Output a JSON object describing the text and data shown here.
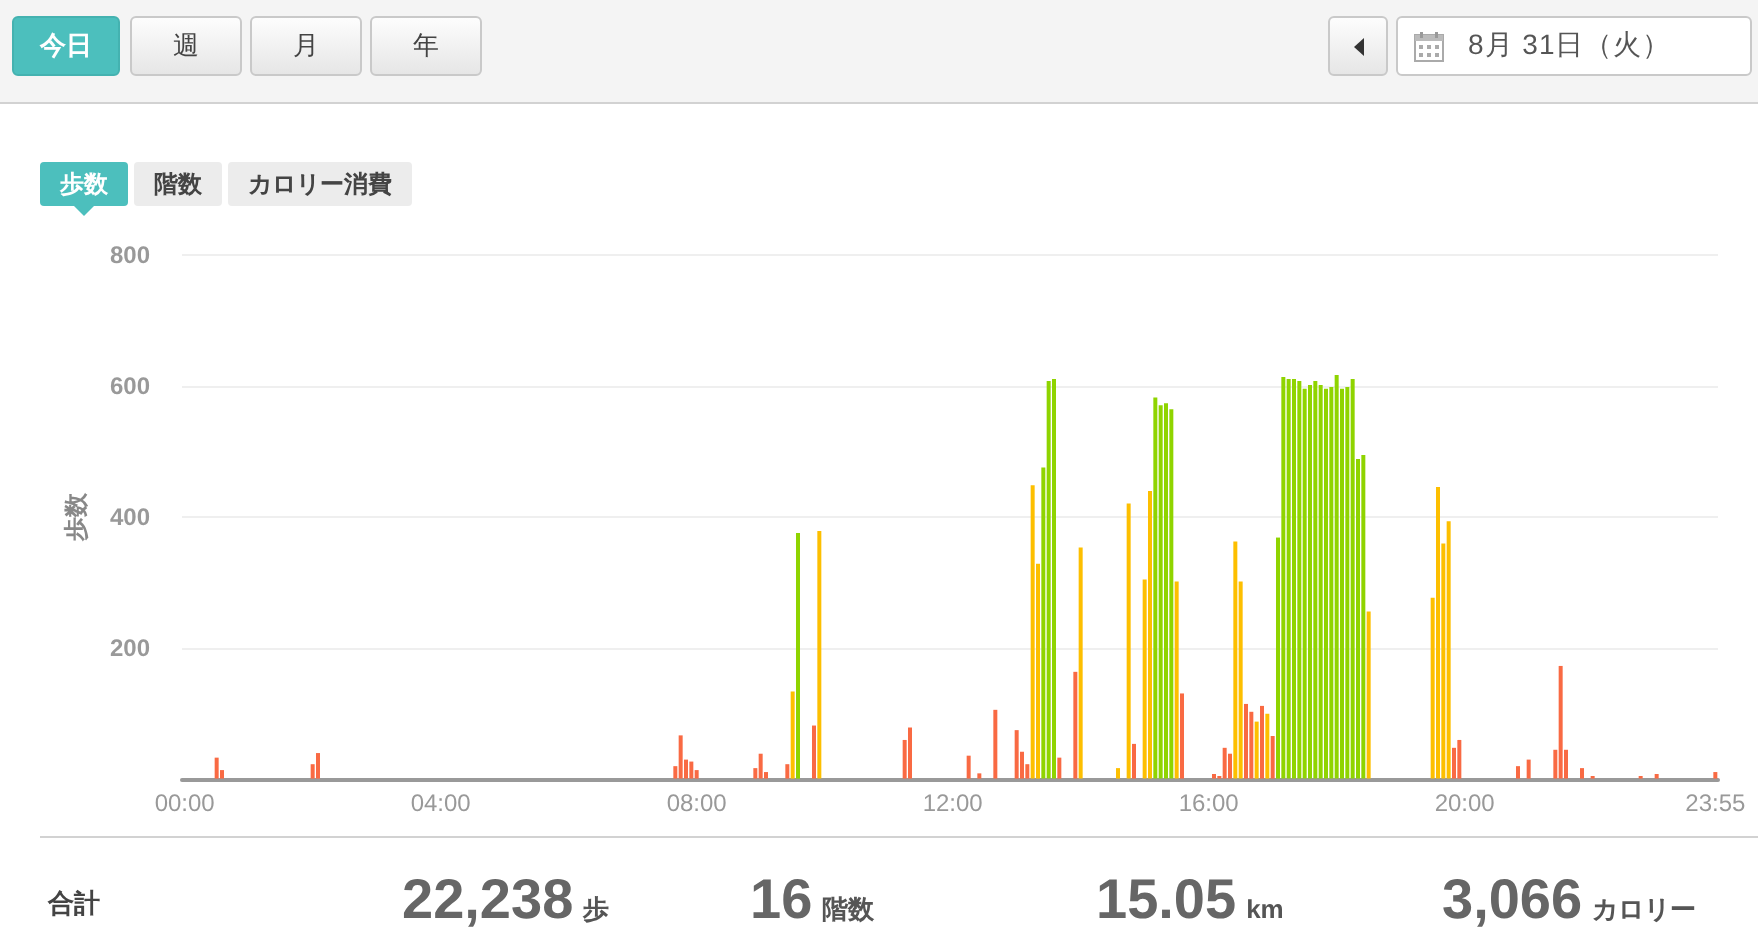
{
  "chart_data": {
    "type": "bar",
    "ylabel": "歩数",
    "categories": [
      "00:00",
      null,
      null,
      null,
      null,
      null,
      null,
      null,
      null,
      null,
      null,
      null,
      null,
      null,
      null,
      null,
      null,
      null,
      null,
      null,
      null,
      null,
      null,
      null,
      null,
      null,
      null,
      null,
      null,
      null,
      null,
      null,
      null,
      null,
      null,
      null,
      null,
      null,
      null,
      null,
      null,
      null,
      null,
      null,
      null,
      null,
      null,
      null,
      "04:00",
      null,
      null,
      null,
      null,
      null,
      null,
      null,
      null,
      null,
      null,
      null,
      null,
      null,
      null,
      null,
      null,
      null,
      null,
      null,
      null,
      null,
      null,
      null,
      null,
      null,
      null,
      null,
      null,
      null,
      null,
      null,
      null,
      null,
      null,
      null,
      null,
      null,
      null,
      null,
      null,
      null,
      null,
      null,
      null,
      null,
      null,
      null,
      "08:00",
      null,
      null,
      null,
      null,
      null,
      null,
      null,
      null,
      null,
      null,
      null,
      null,
      null,
      null,
      null,
      null,
      null,
      null,
      null,
      null,
      null,
      null,
      null,
      null,
      null,
      null,
      null,
      null,
      null,
      null,
      null,
      null,
      null,
      null,
      null,
      null,
      null,
      null,
      null,
      null,
      null,
      null,
      null,
      null,
      null,
      null,
      null,
      "12:00",
      null,
      null,
      null,
      null,
      null,
      null,
      null,
      null,
      null,
      null,
      null,
      null,
      null,
      null,
      null,
      null,
      null,
      null,
      null,
      null,
      null,
      null,
      null,
      null,
      null,
      null,
      null,
      null,
      null,
      null,
      null,
      null,
      null,
      null,
      null,
      null,
      null,
      null,
      null,
      null,
      null,
      null,
      null,
      null,
      null,
      null,
      null,
      "16:00",
      null,
      null,
      null,
      null,
      null,
      null,
      null,
      null,
      null,
      null,
      null,
      null,
      null,
      null,
      null,
      null,
      null,
      null,
      null,
      null,
      null,
      null,
      null,
      null,
      null,
      null,
      null,
      null,
      null,
      null,
      null,
      null,
      null,
      null,
      null,
      null,
      null,
      null,
      null,
      null,
      null,
      null,
      null,
      null,
      null,
      null,
      null,
      "20:00",
      null,
      null,
      null,
      null,
      null,
      null,
      null,
      null,
      null,
      null,
      null,
      null,
      null,
      null,
      null,
      null,
      null,
      null,
      null,
      null,
      null,
      null,
      null,
      null,
      null,
      null,
      null,
      null,
      null,
      null,
      null,
      null,
      null,
      null,
      null,
      null,
      null,
      null,
      null,
      null,
      null,
      null,
      null,
      null,
      null,
      null,
      "23:55"
    ],
    "values": [
      null,
      null,
      null,
      null,
      null,
      null,
      32,
      13,
      null,
      null,
      null,
      null,
      null,
      null,
      null,
      null,
      null,
      null,
      null,
      null,
      null,
      null,
      null,
      null,
      22,
      39,
      null,
      null,
      null,
      null,
      null,
      null,
      null,
      null,
      null,
      null,
      null,
      null,
      null,
      null,
      null,
      null,
      null,
      null,
      null,
      null,
      null,
      null,
      null,
      null,
      null,
      null,
      null,
      null,
      null,
      null,
      null,
      null,
      null,
      null,
      null,
      null,
      null,
      null,
      null,
      null,
      null,
      null,
      null,
      null,
      null,
      null,
      null,
      null,
      null,
      null,
      null,
      null,
      null,
      null,
      null,
      null,
      null,
      null,
      null,
      null,
      null,
      null,
      null,
      null,
      null,
      null,
      19,
      66,
      29,
      26,
      13,
      null,
      null,
      null,
      null,
      null,
      null,
      null,
      null,
      null,
      null,
      16,
      38,
      10,
      null,
      null,
      null,
      22,
      133,
      375,
      null,
      null,
      81,
      378,
      null,
      null,
      null,
      null,
      null,
      null,
      null,
      null,
      null,
      null,
      null,
      null,
      null,
      null,
      null,
      59,
      78,
      null,
      null,
      null,
      null,
      null,
      null,
      null,
      null,
      null,
      null,
      35,
      null,
      8,
      null,
      null,
      105,
      null,
      null,
      null,
      74,
      41,
      22,
      448,
      328,
      475,
      607,
      610,
      32,
      null,
      null,
      163,
      353,
      null,
      null,
      null,
      null,
      null,
      null,
      16,
      null,
      420,
      53,
      null,
      304,
      439,
      582,
      570,
      573,
      564,
      301,
      130,
      null,
      null,
      null,
      null,
      null,
      7,
      4,
      47,
      38,
      362,
      301,
      114,
      102,
      87,
      111,
      99,
      65,
      368,
      613,
      610,
      610,
      607,
      595,
      601,
      607,
      601,
      595,
      598,
      616,
      595,
      598,
      610,
      488,
      494,
      255,
      null,
      null,
      null,
      null,
      null,
      null,
      null,
      null,
      null,
      null,
      null,
      276,
      445,
      359,
      393,
      47,
      59,
      null,
      null,
      null,
      null,
      null,
      null,
      null,
      null,
      null,
      null,
      19,
      null,
      29,
      null,
      null,
      null,
      null,
      44,
      172,
      44,
      null,
      null,
      16,
      null,
      4,
      null,
      null,
      null,
      null,
      null,
      null,
      null,
      null,
      4,
      null,
      null,
      7,
      null,
      null,
      null,
      null,
      null,
      null,
      null,
      null,
      null,
      null,
      10
    ],
    "colors": [
      null,
      null,
      null,
      null,
      null,
      null,
      "#f96a43",
      "#f96a43",
      null,
      null,
      null,
      null,
      null,
      null,
      null,
      null,
      null,
      null,
      null,
      null,
      null,
      null,
      null,
      null,
      "#f96a43",
      "#f96a43",
      null,
      null,
      null,
      null,
      null,
      null,
      null,
      null,
      null,
      null,
      null,
      null,
      null,
      null,
      null,
      null,
      null,
      null,
      null,
      null,
      null,
      null,
      null,
      null,
      null,
      null,
      null,
      null,
      null,
      null,
      null,
      null,
      null,
      null,
      null,
      null,
      null,
      null,
      null,
      null,
      null,
      null,
      null,
      null,
      null,
      null,
      null,
      null,
      null,
      null,
      null,
      null,
      null,
      null,
      null,
      null,
      null,
      null,
      null,
      null,
      null,
      null,
      null,
      null,
      null,
      null,
      "#f96a43",
      "#f96a43",
      "#f96a43",
      "#f96a43",
      "#f96a43",
      null,
      null,
      null,
      null,
      null,
      null,
      null,
      null,
      null,
      null,
      "#f96a43",
      "#f96a43",
      "#f96a43",
      null,
      null,
      null,
      "#f96a43",
      "#fdbf00",
      "#8fd400",
      null,
      null,
      "#f96a43",
      "#fdbf00",
      null,
      null,
      null,
      null,
      null,
      null,
      null,
      null,
      null,
      null,
      null,
      null,
      null,
      null,
      null,
      "#f96a43",
      "#f96a43",
      null,
      null,
      null,
      null,
      null,
      null,
      null,
      null,
      null,
      null,
      "#f96a43",
      null,
      "#f96a43",
      null,
      null,
      "#f96a43",
      null,
      null,
      null,
      "#f96a43",
      "#f96a43",
      "#f96a43",
      "#fdbf00",
      "#fdbf00",
      "#8fd400",
      "#8fd400",
      "#8fd400",
      "#f96a43",
      null,
      null,
      "#f96a43",
      "#fdbf00",
      null,
      null,
      null,
      null,
      null,
      null,
      "#fdbf00",
      null,
      "#fdbf00",
      "#f96a43",
      null,
      "#fdbf00",
      "#fdbf00",
      "#8fd400",
      "#8fd400",
      "#8fd400",
      "#8fd400",
      "#fdbf00",
      "#f96a43",
      null,
      null,
      null,
      null,
      null,
      "#f96a43",
      "#f96a43",
      "#f96a43",
      "#f96a43",
      "#fdbf00",
      "#fdbf00",
      "#f96a43",
      "#f96a43",
      "#fdbf00",
      "#f96a43",
      "#fdbf00",
      "#f96a43",
      "#8fd400",
      "#8fd400",
      "#8fd400",
      "#8fd400",
      "#8fd400",
      "#8fd400",
      "#8fd400",
      "#8fd400",
      "#8fd400",
      "#8fd400",
      "#8fd400",
      "#8fd400",
      "#8fd400",
      "#8fd400",
      "#8fd400",
      "#8fd400",
      "#8fd400",
      "#fdbf00",
      null,
      null,
      null,
      null,
      null,
      null,
      null,
      null,
      null,
      null,
      null,
      "#fdbf00",
      "#fdbf00",
      "#fdbf00",
      "#fdbf00",
      "#f96a43",
      "#f96a43",
      null,
      null,
      null,
      null,
      null,
      null,
      null,
      null,
      null,
      null,
      "#f96a43",
      null,
      "#f96a43",
      null,
      null,
      null,
      null,
      "#f96a43",
      "#f96a43",
      "#f96a43",
      null,
      null,
      "#f96a43",
      null,
      "#f96a43",
      null,
      null,
      null,
      null,
      null,
      null,
      null,
      null,
      "#f96a43",
      null,
      null,
      "#f96a43",
      null,
      null,
      null,
      null,
      null,
      null,
      null,
      null,
      null,
      null,
      "#f96a43"
    ],
    "ylim": [
      0,
      800
    ],
    "yticks": [
      200,
      400,
      600,
      800
    ],
    "grid": "y",
    "annotations": [
      "今日",
      "週",
      "月",
      "年",
      "8月 31日（火）",
      "歩数",
      "階数",
      "カロリー消費",
      "合計",
      "22,238",
      "歩",
      "16",
      "階数",
      "15.05",
      "km",
      "3,066",
      "カロリー"
    ]
  }
}
